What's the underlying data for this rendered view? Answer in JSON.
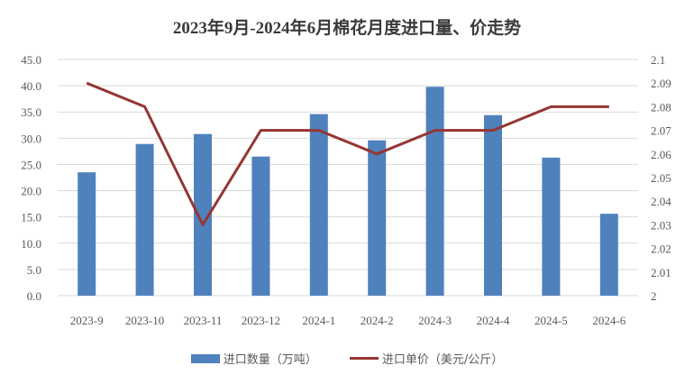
{
  "chart_data": {
    "type": "bar+line",
    "title": "2023年9月-2024年6月棉花月度进口量、价走势",
    "categories": [
      "2023-9",
      "2023-10",
      "2023-11",
      "2023-12",
      "2024-1",
      "2024-2",
      "2024-3",
      "2024-4",
      "2024-5",
      "2024-6"
    ],
    "series": [
      {
        "name": "进口数量（万吨）",
        "type": "bar",
        "axis": "left",
        "color": "#4f81bd",
        "values": [
          23.5,
          28.9,
          30.8,
          26.5,
          34.6,
          29.6,
          39.8,
          34.4,
          26.3,
          15.6
        ]
      },
      {
        "name": "进口单价（美元/公斤）",
        "type": "line",
        "axis": "right",
        "color": "#943634",
        "values": [
          2.09,
          2.08,
          2.03,
          2.07,
          2.07,
          2.06,
          2.07,
          2.07,
          2.08,
          2.08
        ]
      }
    ],
    "left_axis": {
      "min": 0,
      "max": 45,
      "step": 5,
      "ticks": [
        "0.0",
        "5.0",
        "10.0",
        "15.0",
        "20.0",
        "25.0",
        "30.0",
        "35.0",
        "40.0",
        "45.0"
      ]
    },
    "right_axis": {
      "min": 2.0,
      "max": 2.1,
      "step": 0.01,
      "ticks": [
        "2",
        "2.01",
        "2.02",
        "2.03",
        "2.04",
        "2.05",
        "2.06",
        "2.07",
        "2.08",
        "2.09",
        "2.1"
      ]
    },
    "grid": true,
    "legend_position": "bottom"
  },
  "legend": {
    "bar_label": "进口数量（万吨）",
    "line_label": "进口单价（美元/公斤）"
  }
}
